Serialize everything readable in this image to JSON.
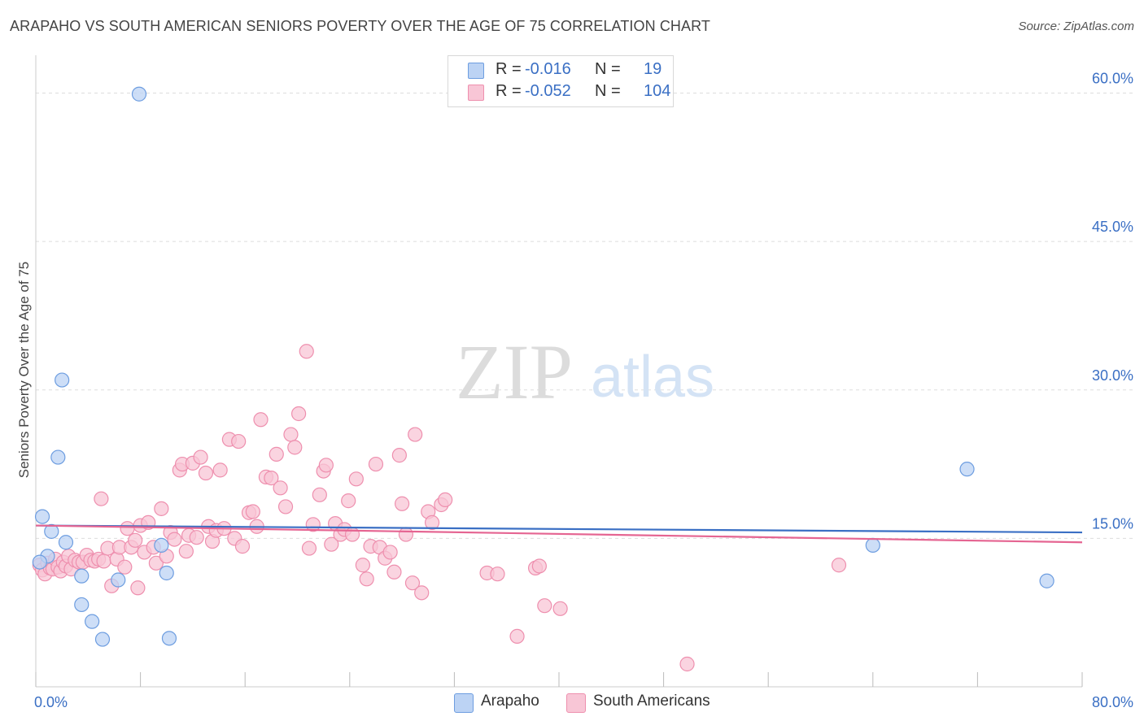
{
  "header": {
    "title": "ARAPAHO VS SOUTH AMERICAN SENIORS POVERTY OVER THE AGE OF 75 CORRELATION CHART",
    "source": "Source: ZipAtlas.com"
  },
  "watermark": {
    "zip": "ZIP",
    "atlas": "atlas"
  },
  "legend": {
    "rows": [
      {
        "r_label": "R =",
        "r_value": "-0.016",
        "n_label": "N =",
        "n_value": "19"
      },
      {
        "r_label": "R =",
        "r_value": "-0.052",
        "n_label": "N =",
        "n_value": "104"
      }
    ]
  },
  "colors": {
    "arapaho_fill": "#bcd3f4",
    "arapaho_stroke": "#6d9de0",
    "arapaho_line": "#3a6fc4",
    "sa_fill": "#f8c6d6",
    "sa_stroke": "#ee8fae",
    "sa_line": "#e56592",
    "axis_text": "#3a6fc4",
    "grid": "#dddddd"
  },
  "chart_data": {
    "type": "scatter",
    "title": "ARAPAHO VS SOUTH AMERICAN SENIORS POVERTY OVER THE AGE OF 75 CORRELATION CHART",
    "xlabel": "",
    "ylabel": "Seniors Poverty Over the Age of 75",
    "xlim": [
      0,
      80
    ],
    "ylim": [
      0,
      63
    ],
    "x_tick_labels": [
      "0.0%",
      "80.0%"
    ],
    "y_ticks": [
      15,
      30,
      45,
      60
    ],
    "y_tick_labels": [
      "15.0%",
      "30.0%",
      "45.0%",
      "60.0%"
    ],
    "series": [
      {
        "name": "Arapaho",
        "r": -0.016,
        "n": 19,
        "trend": {
          "x": [
            0,
            80
          ],
          "y": [
            16.3,
            15.6
          ]
        },
        "points": [
          [
            0.5,
            17.2
          ],
          [
            0.9,
            13.2
          ],
          [
            1.2,
            15.7
          ],
          [
            1.7,
            23.2
          ],
          [
            2.0,
            31.0
          ],
          [
            2.3,
            14.6
          ],
          [
            3.5,
            11.2
          ],
          [
            3.5,
            8.3
          ],
          [
            4.3,
            6.6
          ],
          [
            5.1,
            4.8
          ],
          [
            6.3,
            10.8
          ],
          [
            7.9,
            59.9
          ],
          [
            9.6,
            14.3
          ],
          [
            10.0,
            11.5
          ],
          [
            10.2,
            4.9
          ],
          [
            71.2,
            22.0
          ],
          [
            64.0,
            14.3
          ],
          [
            77.3,
            10.7
          ],
          [
            0.3,
            12.6
          ]
        ]
      },
      {
        "name": "South Americans",
        "r": -0.052,
        "n": 104,
        "trend": {
          "x": [
            0,
            80
          ],
          "y": [
            16.3,
            14.6
          ]
        },
        "points": [
          [
            0.3,
            12.3
          ],
          [
            0.5,
            11.8
          ],
          [
            0.7,
            11.4
          ],
          [
            0.9,
            12.5
          ],
          [
            1.1,
            12.0
          ],
          [
            1.3,
            11.9
          ],
          [
            1.5,
            12.9
          ],
          [
            1.7,
            12.1
          ],
          [
            1.9,
            11.7
          ],
          [
            2.1,
            12.6
          ],
          [
            2.3,
            12.2
          ],
          [
            2.5,
            13.2
          ],
          [
            2.7,
            11.9
          ],
          [
            3.0,
            12.8
          ],
          [
            3.3,
            12.6
          ],
          [
            3.6,
            12.6
          ],
          [
            3.9,
            13.3
          ],
          [
            4.2,
            12.8
          ],
          [
            4.5,
            12.7
          ],
          [
            4.8,
            12.9
          ],
          [
            5.0,
            19.0
          ],
          [
            5.2,
            12.7
          ],
          [
            5.5,
            14.0
          ],
          [
            5.8,
            10.2
          ],
          [
            6.2,
            12.9
          ],
          [
            6.4,
            14.1
          ],
          [
            6.8,
            12.1
          ],
          [
            7.0,
            16.0
          ],
          [
            7.3,
            14.1
          ],
          [
            7.6,
            14.8
          ],
          [
            7.8,
            10.0
          ],
          [
            8.0,
            16.3
          ],
          [
            8.3,
            13.6
          ],
          [
            8.6,
            16.6
          ],
          [
            9.0,
            14.1
          ],
          [
            9.2,
            12.5
          ],
          [
            9.6,
            18.0
          ],
          [
            10.0,
            13.2
          ],
          [
            10.3,
            15.6
          ],
          [
            10.6,
            14.9
          ],
          [
            11.0,
            21.9
          ],
          [
            11.2,
            22.5
          ],
          [
            11.5,
            13.7
          ],
          [
            11.7,
            15.3
          ],
          [
            12.0,
            22.6
          ],
          [
            12.3,
            15.1
          ],
          [
            12.6,
            23.2
          ],
          [
            13.0,
            21.6
          ],
          [
            13.2,
            16.2
          ],
          [
            13.5,
            14.7
          ],
          [
            13.8,
            15.8
          ],
          [
            14.1,
            21.9
          ],
          [
            14.4,
            16.0
          ],
          [
            14.8,
            25.0
          ],
          [
            15.2,
            15.0
          ],
          [
            15.5,
            24.8
          ],
          [
            15.8,
            14.2
          ],
          [
            16.3,
            17.6
          ],
          [
            16.6,
            17.7
          ],
          [
            16.9,
            16.2
          ],
          [
            17.2,
            27.0
          ],
          [
            17.6,
            21.2
          ],
          [
            18.0,
            21.1
          ],
          [
            18.4,
            23.5
          ],
          [
            18.7,
            20.1
          ],
          [
            19.1,
            18.2
          ],
          [
            19.5,
            25.5
          ],
          [
            19.8,
            24.2
          ],
          [
            20.1,
            27.6
          ],
          [
            20.7,
            33.9
          ],
          [
            20.9,
            14.0
          ],
          [
            21.2,
            16.4
          ],
          [
            21.7,
            19.4
          ],
          [
            22.0,
            21.8
          ],
          [
            22.2,
            22.4
          ],
          [
            22.6,
            14.4
          ],
          [
            22.9,
            16.5
          ],
          [
            23.3,
            15.4
          ],
          [
            23.6,
            15.9
          ],
          [
            23.9,
            18.8
          ],
          [
            24.2,
            15.4
          ],
          [
            24.5,
            21.0
          ],
          [
            25.0,
            12.3
          ],
          [
            25.3,
            10.9
          ],
          [
            25.6,
            14.2
          ],
          [
            26.0,
            22.5
          ],
          [
            26.3,
            14.1
          ],
          [
            26.7,
            13.0
          ],
          [
            27.1,
            13.6
          ],
          [
            27.4,
            11.6
          ],
          [
            27.8,
            23.4
          ],
          [
            28.0,
            18.5
          ],
          [
            28.3,
            15.4
          ],
          [
            28.8,
            10.5
          ],
          [
            29.5,
            9.5
          ],
          [
            30.0,
            17.7
          ],
          [
            30.3,
            16.6
          ],
          [
            31.0,
            18.4
          ],
          [
            31.3,
            18.9
          ],
          [
            34.5,
            11.5
          ],
          [
            35.3,
            11.4
          ],
          [
            36.8,
            5.1
          ],
          [
            38.2,
            12.0
          ],
          [
            38.5,
            12.2
          ],
          [
            38.9,
            8.2
          ],
          [
            40.1,
            7.9
          ],
          [
            49.8,
            2.3
          ],
          [
            61.4,
            12.3
          ],
          [
            29.0,
            25.5
          ]
        ]
      }
    ],
    "legend": [
      "Arapaho",
      "South Americans"
    ],
    "grid": true
  }
}
